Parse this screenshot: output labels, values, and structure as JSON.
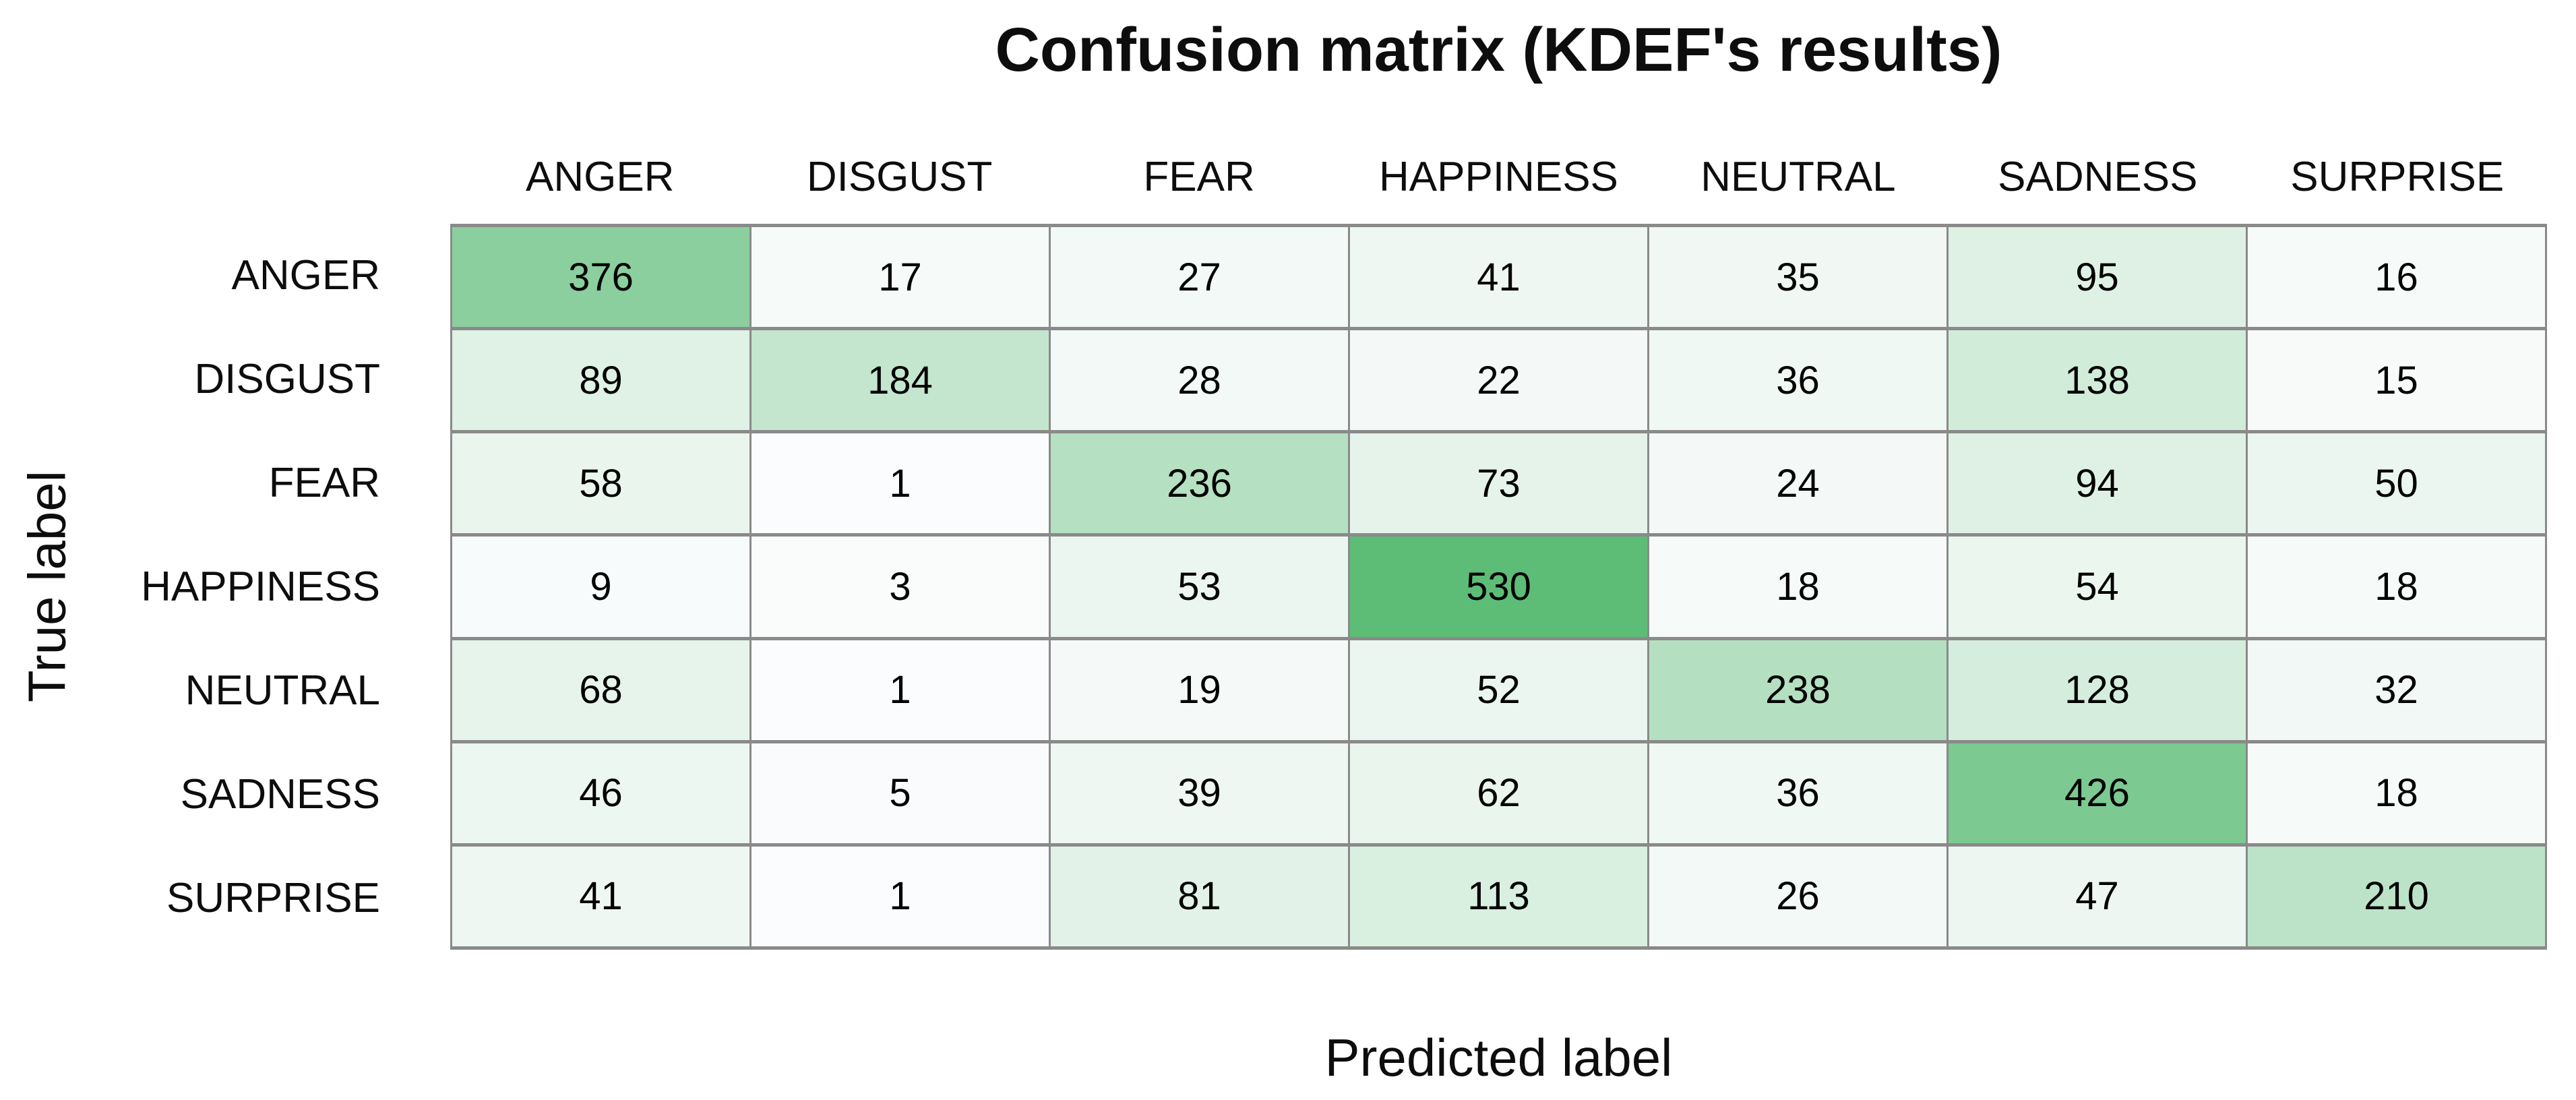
{
  "chart_data": {
    "type": "heatmap",
    "title": "Confusion matrix (KDEF's results)",
    "xlabel": "Predicted label",
    "ylabel": "True label",
    "col_labels": [
      "ANGER",
      "DISGUST",
      "FEAR",
      "HAPPINESS",
      "NEUTRAL",
      "SADNESS",
      "SURPRISE"
    ],
    "row_labels": [
      "ANGER",
      "DISGUST",
      "FEAR",
      "HAPPINESS",
      "NEUTRAL",
      "SADNESS",
      "SURPRISE"
    ],
    "matrix": [
      [
        376,
        17,
        27,
        41,
        35,
        95,
        16
      ],
      [
        89,
        184,
        28,
        22,
        36,
        138,
        15
      ],
      [
        58,
        1,
        236,
        73,
        24,
        94,
        50
      ],
      [
        9,
        3,
        53,
        530,
        18,
        54,
        18
      ],
      [
        68,
        1,
        19,
        52,
        238,
        128,
        32
      ],
      [
        46,
        5,
        39,
        62,
        36,
        426,
        18
      ],
      [
        41,
        1,
        81,
        113,
        26,
        47,
        210
      ]
    ],
    "value_range": [
      0,
      530
    ],
    "colormap": {
      "min_color": "#fbfcfd",
      "max_color": "#5dbd77"
    },
    "grid_color": "#8a8a8a",
    "text_color": "#000000",
    "legend": "none",
    "grid": "on"
  }
}
